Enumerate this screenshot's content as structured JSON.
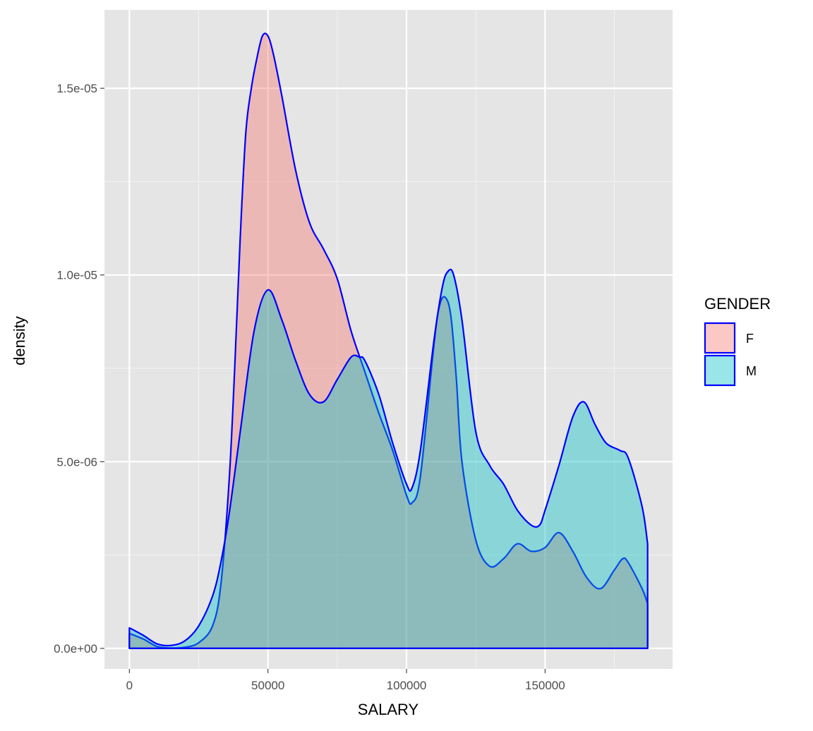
{
  "chart_data": {
    "type": "area",
    "subtype": "density",
    "title": "",
    "xlabel": "SALARY",
    "ylabel": "density",
    "xlim": [
      -9000,
      196000
    ],
    "ylim": [
      -5.5e-07,
      1.71e-05
    ],
    "x_ticks": [
      0,
      50000,
      100000,
      150000
    ],
    "x_tick_labels": [
      "0",
      "50000",
      "100000",
      "150000"
    ],
    "y_ticks": [
      0,
      5e-06,
      1e-05,
      1.5e-05
    ],
    "y_tick_labels": [
      "0.0e+00",
      "5.0e-06",
      "1.0e-05",
      "1.5e-05"
    ],
    "grid": true,
    "panel_background": "#e5e5e5",
    "outline_color": "#0000ff",
    "legend": {
      "title": "GENDER",
      "position": "right",
      "entries": [
        "F",
        "M"
      ]
    },
    "series": [
      {
        "name": "F",
        "fill": "#f8766d",
        "fill_opacity": 0.4,
        "x": [
          0,
          5000,
          10000,
          15000,
          20000,
          25000,
          30000,
          33000,
          36000,
          38000,
          40000,
          42000,
          44000,
          46000,
          48000,
          50000,
          52000,
          55000,
          60000,
          65000,
          70000,
          75000,
          80000,
          85000,
          90000,
          95000,
          100000,
          102000,
          105000,
          110000,
          112000,
          114000,
          116000,
          118000,
          120000,
          125000,
          130000,
          135000,
          140000,
          145000,
          150000,
          155000,
          160000,
          165000,
          170000,
          175000,
          178000,
          180000,
          185000,
          187000
        ],
        "values": [
          4e-07,
          2.5e-07,
          5e-08,
          1e-08,
          3e-08,
          1.5e-07,
          6e-07,
          1.7e-06,
          4.5e-06,
          7.5e-06,
          1.1e-05,
          1.38e-05,
          1.5e-05,
          1.58e-05,
          1.64e-05,
          1.64e-05,
          1.59e-05,
          1.48e-05,
          1.28e-05,
          1.14e-05,
          1.07e-05,
          9.9e-06,
          8.5e-06,
          7.4e-06,
          6.3e-06,
          5.3e-06,
          4.1e-06,
          3.9e-06,
          4.6e-06,
          8.2e-06,
          9.2e-06,
          9.4e-06,
          8.9e-06,
          7.2e-06,
          5e-06,
          2.9e-06,
          2.2e-06,
          2.4e-06,
          2.8e-06,
          2.6e-06,
          2.7e-06,
          3.1e-06,
          2.6e-06,
          1.9e-06,
          1.6e-06,
          2.1e-06,
          2.4e-06,
          2.3e-06,
          1.6e-06,
          1.2e-06
        ]
      },
      {
        "name": "M",
        "fill": "#00bfc4",
        "fill_opacity": 0.4,
        "x": [
          0,
          5000,
          10000,
          15000,
          20000,
          25000,
          30000,
          33000,
          36000,
          40000,
          45000,
          50000,
          55000,
          60000,
          65000,
          70000,
          75000,
          80000,
          83000,
          85000,
          90000,
          95000,
          100000,
          102000,
          105000,
          110000,
          113000,
          115000,
          117000,
          120000,
          125000,
          130000,
          135000,
          140000,
          145000,
          148000,
          150000,
          155000,
          160000,
          164000,
          168000,
          172000,
          177000,
          180000,
          185000,
          187000
        ],
        "values": [
          5.5e-07,
          3.5e-07,
          1.2e-07,
          8e-08,
          2e-07,
          6e-07,
          1.4e-06,
          2.3e-06,
          3.6e-06,
          5.8e-06,
          8.5e-06,
          9.6e-06,
          8.8e-06,
          7.7e-06,
          6.8e-06,
          6.6e-06,
          7.2e-06,
          7.8e-06,
          7.8e-06,
          7.7e-06,
          6.8e-06,
          5.5e-06,
          4.4e-06,
          4.3e-06,
          5.3e-06,
          8.3e-06,
          9.7e-06,
          1.01e-05,
          1e-05,
          8.8e-06,
          5.8e-06,
          4.9e-06,
          4.4e-06,
          3.7e-06,
          3.3e-06,
          3.3e-06,
          3.7e-06,
          4.9e-06,
          6.2e-06,
          6.6e-06,
          6e-06,
          5.5e-06,
          5.3e-06,
          5.1e-06,
          3.8e-06,
          2.8e-06
        ]
      }
    ]
  }
}
